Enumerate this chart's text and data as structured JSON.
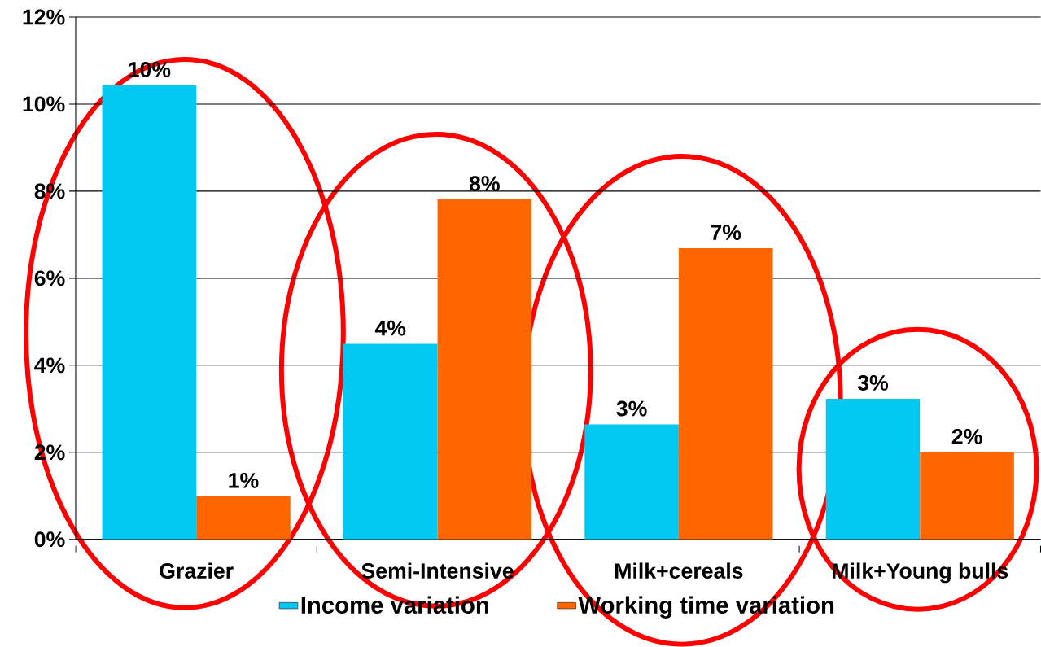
{
  "chart_data": {
    "type": "bar",
    "categories": [
      "Grazier",
      "Semi-Intensive",
      "Milk+cereals",
      "Milk+Young bulls"
    ],
    "series": [
      {
        "name": "Income variation",
        "color": "#00c8f0",
        "values": [
          10.43,
          4.49,
          2.64,
          3.23
        ],
        "value_labels": [
          "10%",
          "4%",
          "3%",
          "3%"
        ]
      },
      {
        "name": "Working time variation",
        "color": "#ff6600",
        "values": [
          0.99,
          7.81,
          6.69,
          2.0
        ],
        "value_labels": [
          "1%",
          "8%",
          "7%",
          "2%"
        ]
      }
    ],
    "ylim": [
      0,
      12
    ],
    "yticks": [
      {
        "value": 0,
        "label": "0%"
      },
      {
        "value": 2,
        "label": "2%"
      },
      {
        "value": 4,
        "label": "4%"
      },
      {
        "value": 6,
        "label": "6%"
      },
      {
        "value": 8,
        "label": "8%"
      },
      {
        "value": 10,
        "label": "10%"
      },
      {
        "value": 12,
        "label": "12%"
      }
    ],
    "grid": "y",
    "legend": "bottom"
  }
}
